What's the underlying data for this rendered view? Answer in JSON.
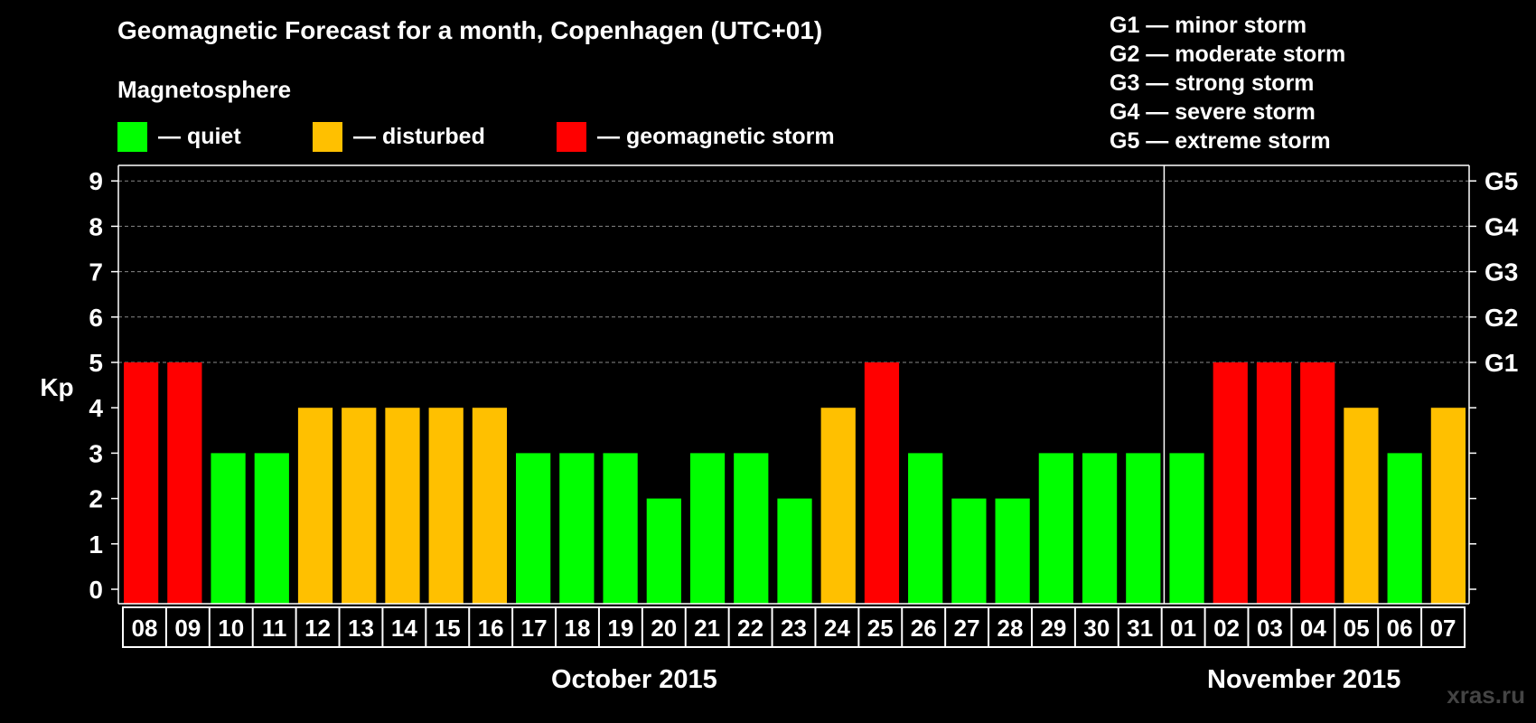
{
  "title": "Geomagnetic Forecast for a month, Copenhagen (UTC+01)",
  "magnetosphere_label": "Magnetosphere",
  "legend": [
    {
      "label": "— quiet",
      "color": "#00ff00"
    },
    {
      "label": "— disturbed",
      "color": "#ffc000"
    },
    {
      "label": "— geomagnetic storm",
      "color": "#ff0000"
    }
  ],
  "storm_levels": [
    "G1 — minor storm",
    "G2 — moderate storm",
    "G3 — strong storm",
    "G4 — severe storm",
    "G5 — extreme storm"
  ],
  "months": [
    "October 2015",
    "November 2015"
  ],
  "watermark": "xras.ru",
  "chart_data": {
    "type": "bar",
    "ylabel": "Kp",
    "ylim": [
      0,
      9
    ],
    "yticks": [
      "0",
      "1",
      "2",
      "3",
      "4",
      "5",
      "6",
      "7",
      "8",
      "9"
    ],
    "right_axis_labels": [
      {
        "kp": 5,
        "label": "G1"
      },
      {
        "kp": 6,
        "label": "G2"
      },
      {
        "kp": 7,
        "label": "G3"
      },
      {
        "kp": 8,
        "label": "G4"
      },
      {
        "kp": 9,
        "label": "G5"
      }
    ],
    "grid": "dashed horizontal lines at Kp 5-9",
    "month_separator_before": "01",
    "categories": [
      "08",
      "09",
      "10",
      "11",
      "12",
      "13",
      "14",
      "15",
      "16",
      "17",
      "18",
      "19",
      "20",
      "21",
      "22",
      "23",
      "24",
      "25",
      "26",
      "27",
      "28",
      "29",
      "30",
      "31",
      "01",
      "02",
      "03",
      "04",
      "05",
      "06",
      "07"
    ],
    "values": [
      5,
      5,
      3,
      3,
      4,
      4,
      4,
      4,
      4,
      3,
      3,
      3,
      2,
      3,
      3,
      2,
      4,
      5,
      3,
      2,
      2,
      3,
      3,
      3,
      3,
      5,
      5,
      5,
      4,
      3,
      4
    ],
    "colors": {
      "quiet": "#00ff00",
      "disturbed": "#ffc000",
      "storm": "#ff0000"
    }
  }
}
